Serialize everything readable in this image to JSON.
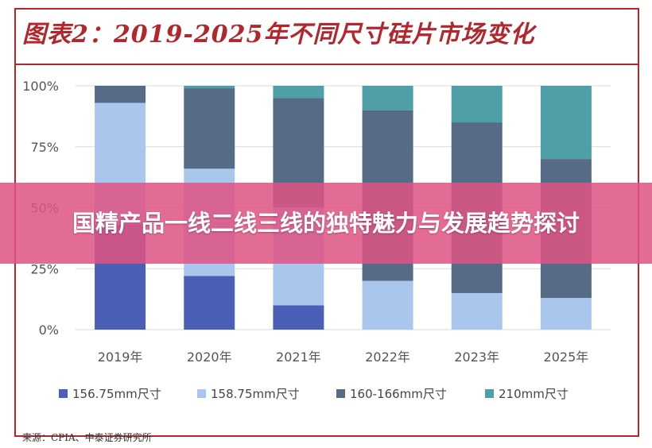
{
  "title": "图表2：2019-2025年不同尺寸硅片市场变化",
  "source": "来源：CPIA、中泰证券研究所",
  "banner_text": "国精产品一线二线三线的独特魅力与发展趋势探讨",
  "colors": {
    "frame": "#b3262c",
    "banner": "#de5484"
  },
  "chart_data": {
    "type": "bar",
    "stacked": true,
    "categories": [
      "2019年",
      "2020年",
      "2021年",
      "2022年",
      "2023年",
      "2025年"
    ],
    "ylim": [
      0,
      100
    ],
    "ytick_labels": [
      "0%",
      "25%",
      "50%",
      "75%",
      "100%"
    ],
    "yticks": [
      0,
      25,
      50,
      75,
      100
    ],
    "grid": true,
    "legend_position": "bottom",
    "series": [
      {
        "name": "156.75mm尺寸",
        "color": "#4a5fb5",
        "values": [
          43,
          22,
          10,
          0,
          0,
          0
        ]
      },
      {
        "name": "158.75mm尺寸",
        "color": "#a9c7ec",
        "values": [
          50,
          44,
          40,
          20,
          15,
          13
        ]
      },
      {
        "name": "160-166mm尺寸",
        "color": "#566b85",
        "values": [
          7,
          33,
          45,
          70,
          70,
          57
        ]
      },
      {
        "name": "210mm尺寸",
        "color": "#4f9fa8",
        "values": [
          0,
          1,
          5,
          10,
          15,
          30
        ]
      }
    ]
  }
}
